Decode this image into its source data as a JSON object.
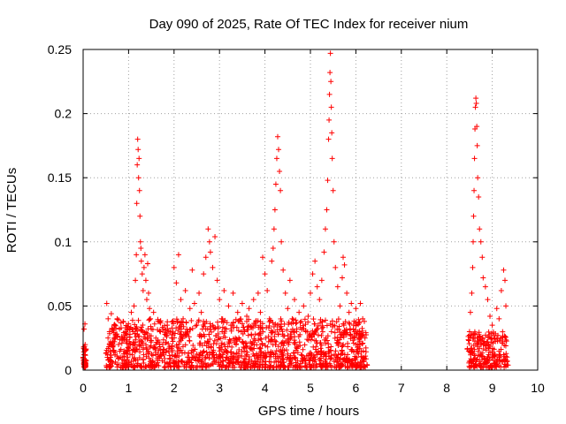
{
  "chart_data": {
    "type": "scatter",
    "title": "Day 090 of 2025, Rate Of TEC Index for receiver nium",
    "xlabel": "GPS time / hours",
    "ylabel": "ROTI / TECUs",
    "xlim": [
      0,
      10
    ],
    "ylim": [
      0,
      0.25
    ],
    "grid": true,
    "marker": "+",
    "color": "#ff0000",
    "x_ticks": [
      {
        "value": 0,
        "label": "0"
      },
      {
        "value": 1,
        "label": "1"
      },
      {
        "value": 2,
        "label": "2"
      },
      {
        "value": 3,
        "label": "3"
      },
      {
        "value": 4,
        "label": "4"
      },
      {
        "value": 5,
        "label": "5"
      },
      {
        "value": 6,
        "label": "6"
      },
      {
        "value": 7,
        "label": "7"
      },
      {
        "value": 8,
        "label": "8"
      },
      {
        "value": 9,
        "label": "9"
      },
      {
        "value": 10,
        "label": "10"
      }
    ],
    "y_ticks": [
      {
        "value": 0,
        "label": "0"
      },
      {
        "value": 0.05,
        "label": "0.05"
      },
      {
        "value": 0.1,
        "label": "0.1"
      },
      {
        "value": 0.15,
        "label": "0.15"
      },
      {
        "value": 0.2,
        "label": "0.2"
      },
      {
        "value": 0.25,
        "label": "0.25"
      }
    ],
    "series": [
      {
        "name": "ROTI",
        "points": [
          [
            0.0,
            0.01
          ],
          [
            0.01,
            0.018
          ],
          [
            0.02,
            0.012
          ],
          [
            0.03,
            0.006
          ],
          [
            0.04,
            0.015
          ],
          [
            0.02,
            0.032
          ],
          [
            0.04,
            0.036
          ],
          [
            0.05,
            0.008
          ],
          [
            0.52,
            0.052
          ],
          [
            0.55,
            0.04
          ],
          [
            0.58,
            0.03
          ],
          [
            0.6,
            0.022
          ],
          [
            0.62,
            0.044
          ],
          [
            0.65,
            0.018
          ],
          [
            0.68,
            0.035
          ],
          [
            0.7,
            0.012
          ],
          [
            0.72,
            0.028
          ],
          [
            0.75,
            0.04
          ],
          [
            0.78,
            0.02
          ],
          [
            0.8,
            0.032
          ],
          [
            0.82,
            0.01
          ],
          [
            0.85,
            0.025
          ],
          [
            0.88,
            0.038
          ],
          [
            0.9,
            0.015
          ],
          [
            0.93,
            0.03
          ],
          [
            0.95,
            0.022
          ],
          [
            0.98,
            0.034
          ],
          [
            1.0,
            0.018
          ],
          [
            1.03,
            0.028
          ],
          [
            1.06,
            0.045
          ],
          [
            1.08,
            0.012
          ],
          [
            1.1,
            0.03
          ],
          [
            1.12,
            0.05
          ],
          [
            1.15,
            0.07
          ],
          [
            1.17,
            0.09
          ],
          [
            1.18,
            0.13
          ],
          [
            1.19,
            0.16
          ],
          [
            1.2,
            0.18
          ],
          [
            1.21,
            0.172
          ],
          [
            1.22,
            0.15
          ],
          [
            1.23,
            0.165
          ],
          [
            1.24,
            0.14
          ],
          [
            1.25,
            0.12
          ],
          [
            1.26,
            0.1
          ],
          [
            1.27,
            0.095
          ],
          [
            1.28,
            0.085
          ],
          [
            1.3,
            0.075
          ],
          [
            1.32,
            0.062
          ],
          [
            1.34,
            0.08
          ],
          [
            1.36,
            0.09
          ],
          [
            1.38,
            0.07
          ],
          [
            1.4,
            0.055
          ],
          [
            1.42,
            0.083
          ],
          [
            1.44,
            0.06
          ],
          [
            1.46,
            0.048
          ],
          [
            1.48,
            0.04
          ],
          [
            1.5,
            0.032
          ],
          [
            1.55,
            0.045
          ],
          [
            1.6,
            0.025
          ],
          [
            1.65,
            0.038
          ],
          [
            1.7,
            0.03
          ],
          [
            1.75,
            0.02
          ],
          [
            1.8,
            0.028
          ],
          [
            1.85,
            0.035
          ],
          [
            1.9,
            0.018
          ],
          [
            1.95,
            0.025
          ],
          [
            2.0,
            0.08
          ],
          [
            2.05,
            0.068
          ],
          [
            2.1,
            0.09
          ],
          [
            2.15,
            0.055
          ],
          [
            2.2,
            0.04
          ],
          [
            2.25,
            0.062
          ],
          [
            2.3,
            0.03
          ],
          [
            2.35,
            0.048
          ],
          [
            2.4,
            0.078
          ],
          [
            2.45,
            0.052
          ],
          [
            2.5,
            0.035
          ],
          [
            2.55,
            0.06
          ],
          [
            2.6,
            0.045
          ],
          [
            2.65,
            0.075
          ],
          [
            2.7,
            0.088
          ],
          [
            2.75,
            0.11
          ],
          [
            2.78,
            0.1
          ],
          [
            2.8,
            0.092
          ],
          [
            2.85,
            0.08
          ],
          [
            2.9,
            0.104
          ],
          [
            2.95,
            0.07
          ],
          [
            3.0,
            0.055
          ],
          [
            3.05,
            0.04
          ],
          [
            3.1,
            0.062
          ],
          [
            3.15,
            0.032
          ],
          [
            3.2,
            0.05
          ],
          [
            3.25,
            0.035
          ],
          [
            3.3,
            0.06
          ],
          [
            3.35,
            0.025
          ],
          [
            3.4,
            0.045
          ],
          [
            3.45,
            0.038
          ],
          [
            3.5,
            0.052
          ],
          [
            3.55,
            0.03
          ],
          [
            3.6,
            0.042
          ],
          [
            3.65,
            0.048
          ],
          [
            3.7,
            0.028
          ],
          [
            3.75,
            0.055
          ],
          [
            3.8,
            0.035
          ],
          [
            3.85,
            0.06
          ],
          [
            3.9,
            0.045
          ],
          [
            3.95,
            0.088
          ],
          [
            4.0,
            0.075
          ],
          [
            4.05,
            0.062
          ],
          [
            4.1,
            0.04
          ],
          [
            4.15,
            0.085
          ],
          [
            4.18,
            0.095
          ],
          [
            4.2,
            0.11
          ],
          [
            4.22,
            0.125
          ],
          [
            4.24,
            0.145
          ],
          [
            4.26,
            0.165
          ],
          [
            4.28,
            0.182
          ],
          [
            4.3,
            0.172
          ],
          [
            4.32,
            0.155
          ],
          [
            4.34,
            0.14
          ],
          [
            4.36,
            0.1
          ],
          [
            4.4,
            0.078
          ],
          [
            4.45,
            0.06
          ],
          [
            4.5,
            0.048
          ],
          [
            4.55,
            0.07
          ],
          [
            4.6,
            0.04
          ],
          [
            4.65,
            0.055
          ],
          [
            4.7,
            0.032
          ],
          [
            4.75,
            0.045
          ],
          [
            4.8,
            0.038
          ],
          [
            4.85,
            0.05
          ],
          [
            4.9,
            0.03
          ],
          [
            4.95,
            0.042
          ],
          [
            5.0,
            0.06
          ],
          [
            5.05,
            0.075
          ],
          [
            5.1,
            0.085
          ],
          [
            5.15,
            0.065
          ],
          [
            5.2,
            0.055
          ],
          [
            5.25,
            0.07
          ],
          [
            5.3,
            0.092
          ],
          [
            5.33,
            0.11
          ],
          [
            5.36,
            0.125
          ],
          [
            5.38,
            0.148
          ],
          [
            5.4,
            0.18
          ],
          [
            5.41,
            0.195
          ],
          [
            5.42,
            0.215
          ],
          [
            5.43,
            0.232
          ],
          [
            5.44,
            0.247
          ],
          [
            5.45,
            0.225
          ],
          [
            5.46,
            0.205
          ],
          [
            5.47,
            0.185
          ],
          [
            5.48,
            0.165
          ],
          [
            5.5,
            0.14
          ],
          [
            5.52,
            0.1
          ],
          [
            5.55,
            0.08
          ],
          [
            5.6,
            0.065
          ],
          [
            5.65,
            0.05
          ],
          [
            5.7,
            0.072
          ],
          [
            5.72,
            0.088
          ],
          [
            5.75,
            0.082
          ],
          [
            5.8,
            0.06
          ],
          [
            5.85,
            0.045
          ],
          [
            5.9,
            0.052
          ],
          [
            5.95,
            0.035
          ],
          [
            6.0,
            0.048
          ],
          [
            6.05,
            0.03
          ],
          [
            6.1,
            0.052
          ],
          [
            6.15,
            0.04
          ],
          [
            6.2,
            0.025
          ],
          [
            0.6,
            0.01
          ],
          [
            0.9,
            0.005
          ],
          [
            1.2,
            0.008
          ],
          [
            1.6,
            0.012
          ],
          [
            2.0,
            0.006
          ],
          [
            2.4,
            0.01
          ],
          [
            2.8,
            0.004
          ],
          [
            3.2,
            0.008
          ],
          [
            3.6,
            0.005
          ],
          [
            4.0,
            0.01
          ],
          [
            4.4,
            0.006
          ],
          [
            4.8,
            0.012
          ],
          [
            5.2,
            0.005
          ],
          [
            5.6,
            0.008
          ],
          [
            6.0,
            0.004
          ],
          [
            8.5,
            0.03
          ],
          [
            8.52,
            0.045
          ],
          [
            8.55,
            0.06
          ],
          [
            8.57,
            0.08
          ],
          [
            8.58,
            0.1
          ],
          [
            8.59,
            0.12
          ],
          [
            8.6,
            0.14
          ],
          [
            8.61,
            0.165
          ],
          [
            8.62,
            0.188
          ],
          [
            8.63,
            0.205
          ],
          [
            8.64,
            0.212
          ],
          [
            8.65,
            0.208
          ],
          [
            8.66,
            0.19
          ],
          [
            8.67,
            0.175
          ],
          [
            8.68,
            0.15
          ],
          [
            8.7,
            0.135
          ],
          [
            8.72,
            0.11
          ],
          [
            8.75,
            0.1
          ],
          [
            8.78,
            0.088
          ],
          [
            8.8,
            0.072
          ],
          [
            8.85,
            0.065
          ],
          [
            8.9,
            0.055
          ],
          [
            8.95,
            0.042
          ],
          [
            9.0,
            0.035
          ],
          [
            9.05,
            0.025
          ],
          [
            9.1,
            0.048
          ],
          [
            9.15,
            0.04
          ],
          [
            9.2,
            0.062
          ],
          [
            9.25,
            0.078
          ],
          [
            9.28,
            0.07
          ],
          [
            9.3,
            0.05
          ],
          [
            8.55,
            0.015
          ],
          [
            8.65,
            0.008
          ],
          [
            8.75,
            0.012
          ],
          [
            8.85,
            0.006
          ],
          [
            8.95,
            0.01
          ],
          [
            9.05,
            0.005
          ],
          [
            9.15,
            0.012
          ],
          [
            9.25,
            0.008
          ],
          [
            9.3,
            0.003
          ]
        ]
      }
    ],
    "dense_segments": [
      {
        "x_start": 0.0,
        "x_end": 0.07,
        "y_low": 0.002,
        "y_high": 0.02,
        "count": 40
      },
      {
        "x_start": 0.5,
        "x_end": 6.25,
        "y_low": 0.002,
        "y_high": 0.04,
        "count": 1400
      },
      {
        "x_start": 8.45,
        "x_end": 9.35,
        "y_low": 0.002,
        "y_high": 0.03,
        "count": 220
      }
    ]
  }
}
